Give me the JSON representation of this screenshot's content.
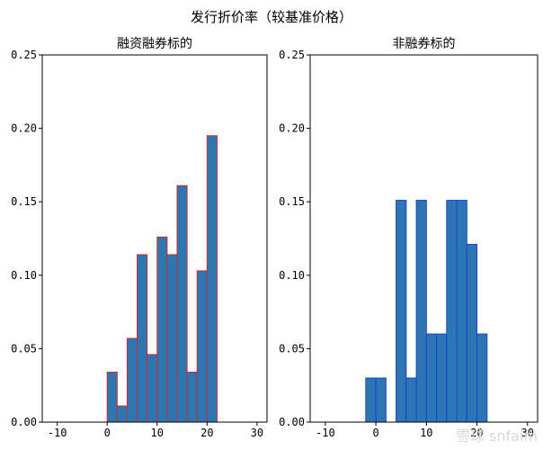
{
  "figure": {
    "suptitle": "发行折价率（较基准价格）",
    "watermark": "雪球 snfaim"
  },
  "chart_data": [
    {
      "type": "bar",
      "title": "融资融券标的",
      "xlabel": "",
      "ylabel": "",
      "xlim": [
        -13,
        32
      ],
      "ylim": [
        0,
        0.25
      ],
      "xticks": [
        -10,
        0,
        10,
        20,
        30
      ],
      "xtick_labels": [
        "-10",
        "0",
        "10",
        "20",
        "30"
      ],
      "yticks": [
        0,
        0.05,
        0.1,
        0.15,
        0.2,
        0.25
      ],
      "ytick_labels": [
        "0.00",
        "0.05",
        "0.10",
        "0.15",
        "0.20",
        "0.25"
      ],
      "bin_width": 2,
      "bar_color": "#2a77b4",
      "edge_color": "#d62728",
      "x": [
        0,
        2,
        4,
        6,
        8,
        10,
        12,
        14,
        16,
        18,
        20
      ],
      "values": [
        0.034,
        0.011,
        0.057,
        0.114,
        0.046,
        0.126,
        0.114,
        0.161,
        0.034,
        0.103,
        0.195
      ]
    },
    {
      "type": "bar",
      "title": "非融券标的",
      "xlabel": "",
      "ylabel": "",
      "xlim": [
        -13,
        32
      ],
      "ylim": [
        0,
        0.25
      ],
      "xticks": [
        -10,
        0,
        10,
        20,
        30
      ],
      "xtick_labels": [
        "-10",
        "0",
        "10",
        "20",
        "30"
      ],
      "yticks": [
        0,
        0.05,
        0.1,
        0.15,
        0.2,
        0.25
      ],
      "ytick_labels": [
        "0.00",
        "0.05",
        "0.10",
        "0.15",
        "0.20",
        "0.25"
      ],
      "bin_width": 2,
      "bar_color": "#2a77b4",
      "edge_color": "#1f3fd6",
      "x": [
        -2,
        0,
        4,
        6,
        8,
        10,
        12,
        14,
        16,
        18,
        20
      ],
      "values": [
        0.03,
        0.03,
        0.151,
        0.03,
        0.151,
        0.06,
        0.06,
        0.151,
        0.151,
        0.121,
        0.06
      ]
    }
  ]
}
